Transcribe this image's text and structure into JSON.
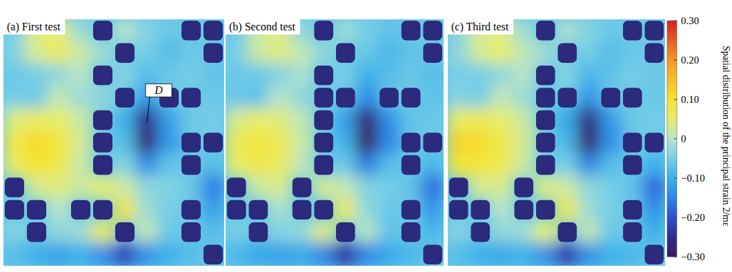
{
  "chart_data": [
    {
      "type": "heatmap",
      "title": "(a) First test",
      "tick_labels": false,
      "annotations": [
        {
          "text": "D"
        }
      ],
      "cells": [
        [
          -0.05,
          0.04,
          0.05,
          -0.02,
          null,
          0.0,
          -0.04,
          -0.06,
          null,
          null
        ],
        [
          -0.04,
          0.03,
          0.06,
          0.02,
          -0.02,
          null,
          -0.05,
          -0.08,
          -0.06,
          null
        ],
        [
          -0.06,
          -0.05,
          -0.03,
          0.0,
          null,
          -0.04,
          -0.08,
          -0.06,
          -0.05,
          -0.07
        ],
        [
          -0.05,
          -0.06,
          0.01,
          -0.02,
          -0.03,
          null,
          -0.12,
          null,
          null,
          -0.06
        ],
        [
          0.04,
          0.06,
          0.05,
          0.02,
          null,
          -0.1,
          -0.26,
          -0.12,
          -0.06,
          -0.05
        ],
        [
          0.08,
          0.11,
          0.09,
          0.03,
          null,
          -0.08,
          -0.28,
          -0.13,
          null,
          null
        ],
        [
          0.06,
          0.1,
          0.08,
          0.02,
          null,
          -0.04,
          -0.14,
          -0.07,
          null,
          -0.08
        ],
        [
          null,
          0.03,
          0.04,
          0.02,
          0.05,
          0.02,
          -0.03,
          -0.04,
          -0.06,
          -0.16
        ],
        [
          null,
          null,
          0.0,
          null,
          null,
          0.09,
          -0.02,
          -0.05,
          null,
          -0.12
        ],
        [
          -0.04,
          null,
          -0.03,
          -0.02,
          0.06,
          null,
          0.01,
          -0.06,
          null,
          -0.08
        ],
        [
          -0.08,
          -0.1,
          -0.12,
          -0.1,
          -0.14,
          -0.22,
          -0.14,
          -0.1,
          -0.08,
          null
        ]
      ]
    },
    {
      "type": "heatmap",
      "title": "(b) Second test",
      "tick_labels": false,
      "cells": [
        [
          -0.06,
          0.02,
          0.04,
          -0.03,
          null,
          -0.02,
          -0.05,
          -0.07,
          null,
          null
        ],
        [
          -0.05,
          0.02,
          0.04,
          0.01,
          -0.03,
          null,
          -0.06,
          -0.09,
          -0.07,
          null
        ],
        [
          -0.06,
          -0.06,
          -0.04,
          -0.01,
          null,
          -0.05,
          -0.1,
          -0.08,
          -0.06,
          -0.08
        ],
        [
          -0.06,
          -0.07,
          0.0,
          -0.03,
          null,
          null,
          -0.14,
          null,
          null,
          -0.07
        ],
        [
          0.03,
          0.05,
          0.04,
          0.01,
          null,
          -0.12,
          -0.28,
          -0.14,
          -0.07,
          -0.06
        ],
        [
          0.07,
          0.09,
          0.07,
          0.02,
          null,
          -0.1,
          -0.3,
          -0.15,
          null,
          null
        ],
        [
          0.05,
          0.08,
          0.06,
          0.01,
          null,
          -0.06,
          -0.16,
          -0.08,
          null,
          -0.09
        ],
        [
          null,
          0.02,
          0.03,
          null,
          0.03,
          0.01,
          -0.04,
          -0.05,
          -0.07,
          -0.17
        ],
        [
          null,
          null,
          -0.01,
          null,
          null,
          0.06,
          -0.03,
          -0.06,
          null,
          -0.13
        ],
        [
          -0.05,
          null,
          -0.04,
          -0.03,
          0.04,
          null,
          0.0,
          -0.07,
          null,
          -0.09
        ],
        [
          -0.09,
          -0.11,
          -0.12,
          -0.11,
          -0.15,
          -0.24,
          -0.15,
          -0.11,
          -0.09,
          null
        ]
      ]
    },
    {
      "type": "heatmap",
      "title": "(c) Third test",
      "tick_labels": false,
      "cells": [
        [
          -0.04,
          0.03,
          0.04,
          -0.02,
          null,
          -0.01,
          -0.04,
          -0.06,
          null,
          null
        ],
        [
          -0.03,
          0.03,
          0.05,
          0.01,
          -0.02,
          null,
          -0.05,
          -0.08,
          -0.06,
          null
        ],
        [
          -0.05,
          -0.05,
          -0.03,
          0.0,
          null,
          -0.04,
          -0.09,
          -0.07,
          -0.05,
          -0.06
        ],
        [
          -0.04,
          -0.05,
          0.01,
          -0.02,
          null,
          null,
          -0.13,
          null,
          null,
          -0.06
        ],
        [
          0.06,
          0.07,
          0.05,
          0.02,
          null,
          -0.11,
          -0.27,
          -0.13,
          -0.06,
          -0.05
        ],
        [
          0.12,
          0.11,
          0.08,
          0.03,
          null,
          -0.09,
          -0.29,
          -0.14,
          null,
          null
        ],
        [
          0.09,
          0.09,
          0.07,
          0.02,
          null,
          -0.05,
          -0.15,
          -0.08,
          null,
          -0.1
        ],
        [
          null,
          0.03,
          0.03,
          null,
          0.04,
          0.02,
          -0.03,
          -0.05,
          -0.07,
          -0.18
        ],
        [
          null,
          null,
          0.0,
          null,
          null,
          0.07,
          -0.02,
          -0.05,
          null,
          -0.14
        ],
        [
          -0.04,
          null,
          -0.03,
          -0.02,
          0.05,
          null,
          0.01,
          -0.06,
          null,
          -0.1
        ],
        [
          -0.08,
          -0.1,
          -0.11,
          -0.1,
          -0.14,
          -0.23,
          -0.14,
          -0.1,
          -0.09,
          null
        ]
      ],
      "color_range": [
        -0.3,
        0.3
      ],
      "color_ticks": [
        {
          "value": 0.3,
          "label": "0.30"
        },
        {
          "value": 0.2,
          "label": "0.20"
        },
        {
          "value": 0.1,
          "label": "0.10"
        },
        0,
        {
          "value": -0.1,
          "label": "−0.10"
        },
        {
          "value": -0.2,
          "label": "−0.20"
        },
        {
          "value": -0.3,
          "label": "−0.30"
        }
      ],
      "colorbar_label": "Spatial distribution of the principal strain 2/mε"
    }
  ]
}
